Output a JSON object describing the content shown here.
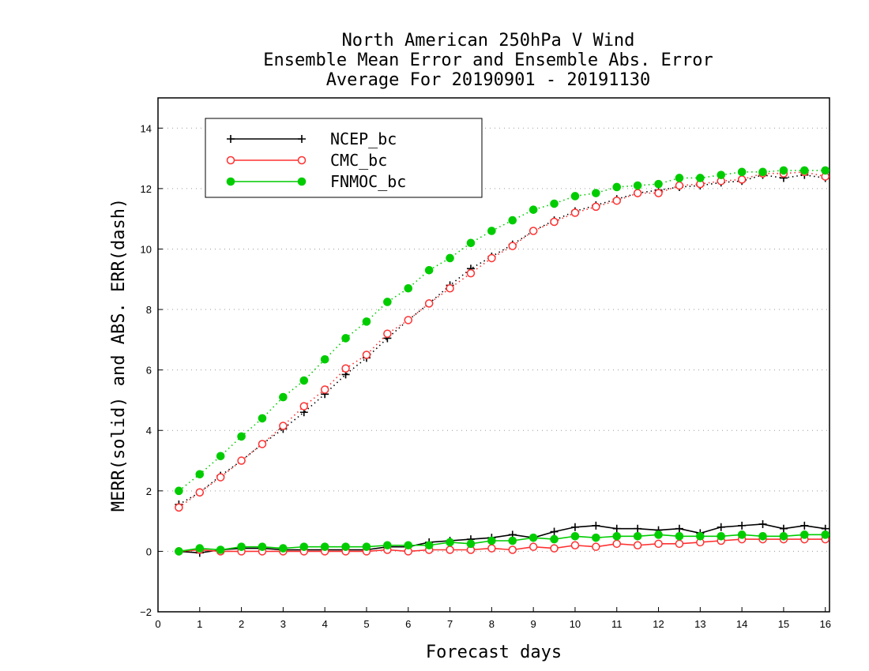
{
  "chart_data": {
    "type": "line",
    "title_lines": [
      "North American 250hPa V Wind",
      "Ensemble Mean Error and Ensemble Abs. Error",
      "Average For 20190901 - 20191130"
    ],
    "xlabel": "Forecast days",
    "ylabel": "MERR(solid) and ABS. ERR(dash)",
    "xlim": [
      0,
      16.1
    ],
    "ylim": [
      -2,
      15
    ],
    "xticks": [
      0,
      1,
      2,
      3,
      4,
      5,
      6,
      7,
      8,
      9,
      10,
      11,
      12,
      13,
      14,
      15,
      16
    ],
    "yticks": [
      -2,
      0,
      2,
      4,
      6,
      8,
      10,
      12,
      14
    ],
    "grid": "horizontal dotted",
    "legend_position": "top-left",
    "x": [
      0.5,
      1,
      1.5,
      2,
      2.5,
      3,
      3.5,
      4,
      4.5,
      5,
      5.5,
      6,
      6.5,
      7,
      7.5,
      8,
      8.5,
      9,
      9.5,
      10,
      10.5,
      11,
      11.5,
      12,
      12.5,
      13,
      13.5,
      14,
      14.5,
      15,
      15.5,
      16
    ],
    "series": [
      {
        "name": "NCEP_bc",
        "color": "#000000",
        "marker": "plus",
        "abs_err": [
          1.55,
          1.95,
          2.5,
          3.0,
          3.55,
          4.05,
          4.6,
          5.2,
          5.85,
          6.4,
          7.05,
          7.65,
          8.2,
          8.8,
          9.35,
          9.75,
          10.15,
          10.6,
          10.95,
          11.25,
          11.45,
          11.65,
          11.85,
          11.95,
          12.05,
          12.1,
          12.2,
          12.25,
          12.45,
          12.35,
          12.45,
          12.35
        ],
        "mean_err": [
          0.0,
          -0.05,
          0.05,
          0.1,
          0.1,
          0.05,
          0.05,
          0.05,
          0.05,
          0.05,
          0.15,
          0.15,
          0.3,
          0.35,
          0.4,
          0.45,
          0.55,
          0.45,
          0.65,
          0.8,
          0.85,
          0.75,
          0.75,
          0.7,
          0.75,
          0.6,
          0.8,
          0.85,
          0.9,
          0.75,
          0.85,
          0.75
        ]
      },
      {
        "name": "CMC_bc",
        "color": "#ff3030",
        "marker": "open-circle",
        "abs_err": [
          1.45,
          1.95,
          2.45,
          3.0,
          3.55,
          4.15,
          4.8,
          5.35,
          6.05,
          6.5,
          7.2,
          7.65,
          8.2,
          8.7,
          9.2,
          9.7,
          10.1,
          10.6,
          10.9,
          11.2,
          11.4,
          11.6,
          11.85,
          11.85,
          12.1,
          12.15,
          12.25,
          12.3,
          12.5,
          12.5,
          12.55,
          12.4
        ],
        "mean_err": [
          0.0,
          0.05,
          0.0,
          0.0,
          0.0,
          0.0,
          0.0,
          0.0,
          0.0,
          0.0,
          0.05,
          0.0,
          0.05,
          0.05,
          0.05,
          0.1,
          0.05,
          0.15,
          0.1,
          0.2,
          0.15,
          0.25,
          0.2,
          0.25,
          0.25,
          0.3,
          0.35,
          0.4,
          0.4,
          0.4,
          0.4,
          0.4
        ]
      },
      {
        "name": "FNMOC_bc",
        "color": "#00cc00",
        "marker": "filled-circle",
        "abs_err": [
          2.0,
          2.55,
          3.15,
          3.8,
          4.4,
          5.1,
          5.65,
          6.35,
          7.05,
          7.6,
          8.25,
          8.7,
          9.3,
          9.7,
          10.2,
          10.6,
          10.95,
          11.3,
          11.5,
          11.75,
          11.85,
          12.05,
          12.1,
          12.15,
          12.35,
          12.35,
          12.45,
          12.55,
          12.55,
          12.6,
          12.6,
          12.6
        ],
        "mean_err": [
          0.0,
          0.1,
          0.05,
          0.15,
          0.15,
          0.1,
          0.15,
          0.15,
          0.15,
          0.15,
          0.2,
          0.2,
          0.2,
          0.3,
          0.25,
          0.35,
          0.35,
          0.45,
          0.4,
          0.5,
          0.45,
          0.5,
          0.5,
          0.55,
          0.5,
          0.5,
          0.5,
          0.55,
          0.5,
          0.5,
          0.55,
          0.55
        ]
      }
    ]
  }
}
